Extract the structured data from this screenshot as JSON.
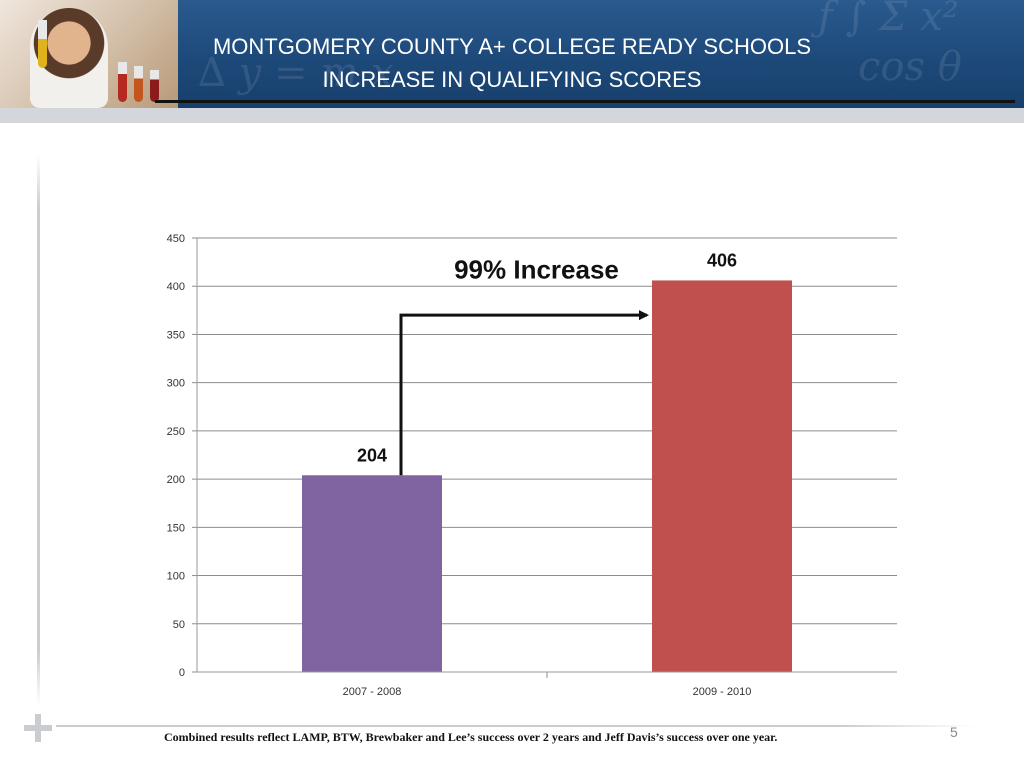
{
  "header": {
    "title_line1": "MONTGOMERY COUNTY A+ COLLEGE READY SCHOOLS",
    "title_line2": "INCREASE IN QUALIFYING SCORES"
  },
  "chart_data": {
    "type": "bar",
    "categories": [
      "2007 - 2008",
      "2009 - 2010"
    ],
    "values": [
      204,
      406
    ],
    "colors": [
      "#8064a2",
      "#c0504d"
    ],
    "ylim": [
      0,
      450
    ],
    "yticks": [
      0,
      50,
      100,
      150,
      200,
      250,
      300,
      350,
      400,
      450
    ],
    "grid": true,
    "annotation": "99% Increase"
  },
  "footnote": "Combined results reflect LAMP, BTW, Brewbaker and Lee’s success over 2 years and Jeff Davis’s success over one year.",
  "page_number": "5"
}
